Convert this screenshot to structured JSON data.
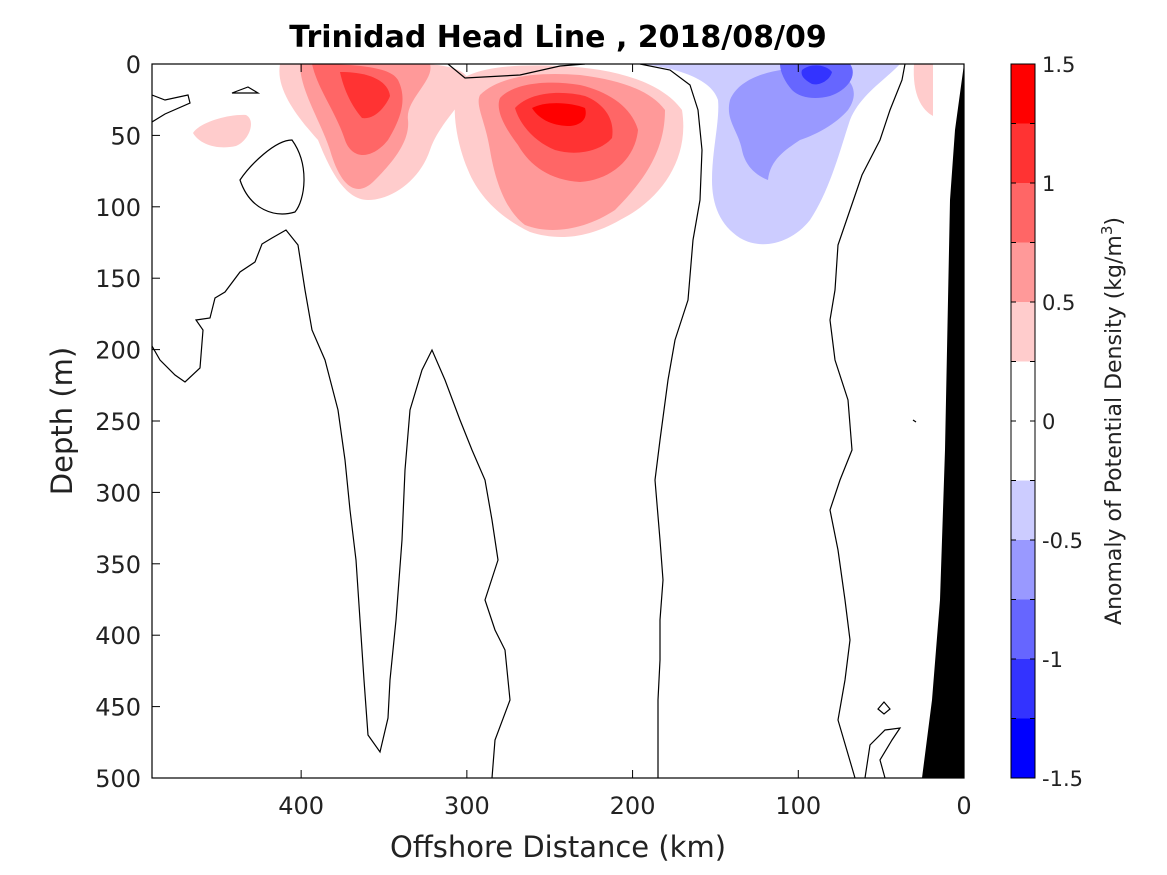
{
  "chart_data": {
    "type": "contour",
    "title": "Trinidad Head Line , 2018/08/09",
    "xlabel": "Offshore Distance (km)",
    "ylabel": "Depth (m)",
    "xlim": [
      490,
      0
    ],
    "ylim": [
      0,
      500
    ],
    "x_ticks": [
      {
        "value": 400,
        "label": "400"
      },
      {
        "value": 300,
        "label": "300"
      },
      {
        "value": 200,
        "label": "200"
      },
      {
        "value": 100,
        "label": "100"
      },
      {
        "value": 0,
        "label": "0"
      }
    ],
    "y_ticks": [
      {
        "value": 0,
        "label": "0"
      },
      {
        "value": 50,
        "label": "50"
      },
      {
        "value": 100,
        "label": "100"
      },
      {
        "value": 150,
        "label": "150"
      },
      {
        "value": 200,
        "label": "200"
      },
      {
        "value": 250,
        "label": "250"
      },
      {
        "value": 300,
        "label": "300"
      },
      {
        "value": 350,
        "label": "350"
      },
      {
        "value": 400,
        "label": "400"
      },
      {
        "value": 450,
        "label": "450"
      },
      {
        "value": 500,
        "label": "500"
      }
    ],
    "colorbar": {
      "label": "Anomaly of Potential Density (kg/m",
      "label_superscript": "3",
      "label_suffix": ")",
      "range": [
        -1.5,
        1.5
      ],
      "levels": [
        {
          "from": -1.5,
          "to": -1.25,
          "color": "#0000ff"
        },
        {
          "from": -1.25,
          "to": -1.0,
          "color": "#3333ff"
        },
        {
          "from": -1.0,
          "to": -0.75,
          "color": "#6666ff"
        },
        {
          "from": -0.75,
          "to": -0.5,
          "color": "#9999ff"
        },
        {
          "from": -0.5,
          "to": -0.25,
          "color": "#ccccff"
        },
        {
          "from": -0.25,
          "to": 0.25,
          "color": "#ffffff"
        },
        {
          "from": 0.25,
          "to": 0.5,
          "color": "#ffcccc"
        },
        {
          "from": 0.5,
          "to": 0.75,
          "color": "#ff9999"
        },
        {
          "from": 0.75,
          "to": 1.0,
          "color": "#ff6666"
        },
        {
          "from": 1.0,
          "to": 1.25,
          "color": "#ff3333"
        },
        {
          "from": 1.25,
          "to": 1.5,
          "color": "#ff0000"
        }
      ],
      "ticks": [
        {
          "value": 1.5,
          "label": "1.5"
        },
        {
          "value": 1.0,
          "label": "1"
        },
        {
          "value": 0.5,
          "label": "0.5"
        },
        {
          "value": 0.0,
          "label": "0"
        },
        {
          "value": -0.5,
          "label": "-0.5"
        },
        {
          "value": -1.0,
          "label": "-1"
        },
        {
          "value": -1.5,
          "label": "-1.5"
        }
      ]
    },
    "anomaly_features": [
      {
        "kind": "positive",
        "center_km": 355,
        "center_depth_m": 30,
        "peak": 1.0
      },
      {
        "kind": "positive",
        "center_km": 238,
        "center_depth_m": 35,
        "peak": 1.3
      },
      {
        "kind": "negative",
        "center_km": 90,
        "center_depth_m": 8,
        "peak": -1.1
      },
      {
        "kind": "positive",
        "center_km": 25,
        "center_depth_m": 20,
        "peak": 0.4
      }
    ],
    "bathymetry_color": "#000000",
    "grid": false
  }
}
